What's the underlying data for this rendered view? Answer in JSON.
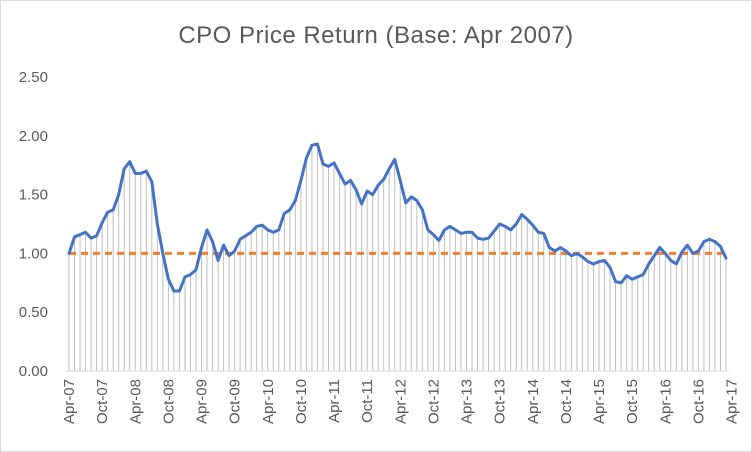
{
  "chart_data": {
    "type": "line",
    "title": "CPO Price Return (Base: Apr 2007)",
    "xlabel": "",
    "ylabel": "",
    "ylim": [
      0,
      2.5
    ],
    "y_ticks": [
      "0.00",
      "0.50",
      "1.00",
      "1.50",
      "2.00",
      "2.50"
    ],
    "x_tick_labels": [
      "Apr-07",
      "Oct-07",
      "Apr-08",
      "Oct-08",
      "Apr-09",
      "Oct-09",
      "Apr-10",
      "Oct-10",
      "Apr-11",
      "Oct-11",
      "Apr-12",
      "Oct-12",
      "Apr-13",
      "Oct-13",
      "Apr-14",
      "Oct-14",
      "Apr-15",
      "Oct-15",
      "Apr-16",
      "Oct-16",
      "Apr-17"
    ],
    "grid": false,
    "legend": "none",
    "reference_line": {
      "value": 1.0,
      "style": "dashed",
      "color": "#ED7D31"
    },
    "series_color": "#4472C4",
    "series": [
      {
        "values": [
          1.0,
          1.14,
          1.16,
          1.18,
          1.13,
          1.15,
          1.26,
          1.35,
          1.37,
          1.5,
          1.72,
          1.78,
          1.68,
          1.68,
          1.7,
          1.61,
          1.25,
          1.0,
          0.78,
          0.68,
          0.68,
          0.8,
          0.82,
          0.86,
          1.05,
          1.2,
          1.1,
          0.94,
          1.07,
          0.98,
          1.02,
          1.12,
          1.15,
          1.18,
          1.23,
          1.24,
          1.2,
          1.18,
          1.2,
          1.34,
          1.37,
          1.45,
          1.62,
          1.81,
          1.92,
          1.93,
          1.76,
          1.74,
          1.77,
          1.68,
          1.59,
          1.62,
          1.54,
          1.42,
          1.53,
          1.5,
          1.58,
          1.63,
          1.72,
          1.8,
          1.62,
          1.43,
          1.48,
          1.45,
          1.37,
          1.2,
          1.16,
          1.11,
          1.2,
          1.23,
          1.2,
          1.17,
          1.18,
          1.18,
          1.13,
          1.12,
          1.13,
          1.19,
          1.25,
          1.23,
          1.2,
          1.25,
          1.33,
          1.29,
          1.24,
          1.18,
          1.17,
          1.05,
          1.02,
          1.05,
          1.02,
          0.98,
          1.0,
          0.97,
          0.93,
          0.91,
          0.93,
          0.94,
          0.88,
          0.76,
          0.75,
          0.81,
          0.78,
          0.8,
          0.82,
          0.91,
          0.98,
          1.05,
          1.0,
          0.94,
          0.91,
          1.01,
          1.07,
          1.0,
          1.02,
          1.1,
          1.12,
          1.1,
          1.06,
          0.96
        ]
      }
    ]
  }
}
